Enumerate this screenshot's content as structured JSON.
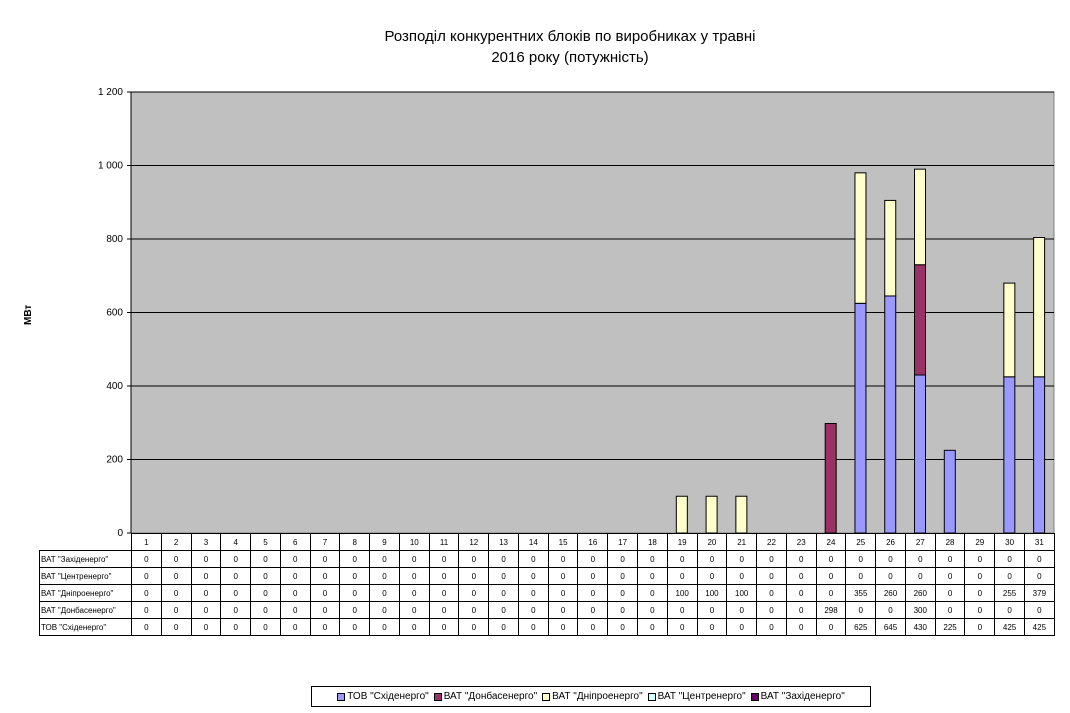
{
  "chart_data": {
    "type": "bar",
    "stacked": true,
    "title_lines": [
      "Розподіл конкурентних блоків по виробниках у травні",
      "2016 року (потужність)"
    ],
    "xlabel": "",
    "ylabel": "МВт",
    "ylim": [
      0,
      1200
    ],
    "yticks": [
      0,
      200,
      400,
      600,
      800,
      1000,
      1200
    ],
    "ytick_labels": [
      "0",
      "200",
      "400",
      "600",
      "800",
      "1 000",
      "1 200"
    ],
    "grid": true,
    "legend_position": "bottom",
    "categories": [
      "1",
      "2",
      "3",
      "4",
      "5",
      "6",
      "7",
      "8",
      "9",
      "10",
      "11",
      "12",
      "13",
      "14",
      "15",
      "16",
      "17",
      "18",
      "19",
      "20",
      "21",
      "22",
      "23",
      "24",
      "25",
      "26",
      "27",
      "28",
      "29",
      "30",
      "31"
    ],
    "series": [
      {
        "name": "ТОВ \"Східенерго\"",
        "color": "#9999ff",
        "values": [
          0,
          0,
          0,
          0,
          0,
          0,
          0,
          0,
          0,
          0,
          0,
          0,
          0,
          0,
          0,
          0,
          0,
          0,
          0,
          0,
          0,
          0,
          0,
          0,
          625,
          645,
          430,
          225,
          0,
          425,
          425
        ]
      },
      {
        "name": "ВАТ \"Донбасенерго\"",
        "color": "#993366",
        "values": [
          0,
          0,
          0,
          0,
          0,
          0,
          0,
          0,
          0,
          0,
          0,
          0,
          0,
          0,
          0,
          0,
          0,
          0,
          0,
          0,
          0,
          0,
          0,
          298,
          0,
          0,
          300,
          0,
          0,
          0,
          0
        ]
      },
      {
        "name": "ВАТ \"Дніпроенерго\"",
        "color": "#ffffcc",
        "values": [
          0,
          0,
          0,
          0,
          0,
          0,
          0,
          0,
          0,
          0,
          0,
          0,
          0,
          0,
          0,
          0,
          0,
          0,
          100,
          100,
          100,
          0,
          0,
          0,
          355,
          260,
          260,
          0,
          0,
          255,
          379
        ]
      },
      {
        "name": "ВАТ \"Центренерго\"",
        "color": "#ccffff",
        "values": [
          0,
          0,
          0,
          0,
          0,
          0,
          0,
          0,
          0,
          0,
          0,
          0,
          0,
          0,
          0,
          0,
          0,
          0,
          0,
          0,
          0,
          0,
          0,
          0,
          0,
          0,
          0,
          0,
          0,
          0,
          0
        ]
      },
      {
        "name": "ВАТ \"Західенерго\"",
        "color": "#660066",
        "values": [
          0,
          0,
          0,
          0,
          0,
          0,
          0,
          0,
          0,
          0,
          0,
          0,
          0,
          0,
          0,
          0,
          0,
          0,
          0,
          0,
          0,
          0,
          0,
          0,
          0,
          0,
          0,
          0,
          0,
          0,
          0
        ]
      }
    ],
    "table_row_order": [
      4,
      3,
      2,
      1,
      0
    ],
    "plot_background": "#c0c0c0"
  }
}
